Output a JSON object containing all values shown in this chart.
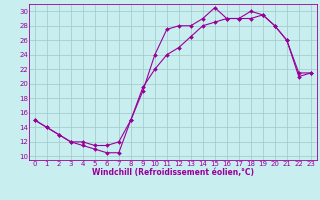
{
  "xlabel": "Windchill (Refroidissement éolien,°C)",
  "bg_color": "#c8eef0",
  "line_color": "#990099",
  "grid_color": "#a0c8c8",
  "marker": "D",
  "markersize": 2,
  "linewidth": 0.8,
  "xlim": [
    -0.5,
    23.5
  ],
  "ylim": [
    9.5,
    31
  ],
  "yticks": [
    10,
    12,
    14,
    16,
    18,
    20,
    22,
    24,
    26,
    28,
    30
  ],
  "xticks": [
    0,
    1,
    2,
    3,
    4,
    5,
    6,
    7,
    8,
    9,
    10,
    11,
    12,
    13,
    14,
    15,
    16,
    17,
    18,
    19,
    20,
    21,
    22,
    23
  ],
  "line1_x": [
    0,
    1,
    2,
    3,
    4,
    5,
    6,
    7,
    8,
    9,
    10,
    11,
    12,
    13,
    14,
    15,
    16,
    17,
    18,
    19,
    20,
    21,
    22,
    23
  ],
  "line1_y": [
    15,
    14,
    13,
    12,
    11.5,
    11,
    10.5,
    10.5,
    15,
    19,
    24,
    27.5,
    28,
    28,
    29,
    30.5,
    29,
    29,
    29,
    29.5,
    28,
    26,
    21,
    21.5
  ],
  "line2_x": [
    0,
    1,
    2,
    3,
    4,
    5,
    6,
    7,
    8,
    9,
    10,
    11,
    12,
    13,
    14,
    15,
    16,
    17,
    18,
    19,
    20,
    21,
    22,
    23
  ],
  "line2_y": [
    15,
    14,
    13,
    12,
    12,
    11.5,
    11.5,
    12,
    15,
    19.5,
    22,
    24,
    25,
    26.5,
    28,
    28.5,
    29,
    29,
    30,
    29.5,
    28,
    26,
    21.5,
    21.5
  ],
  "xlabel_fontsize": 5.5,
  "tick_fontsize": 5.0
}
